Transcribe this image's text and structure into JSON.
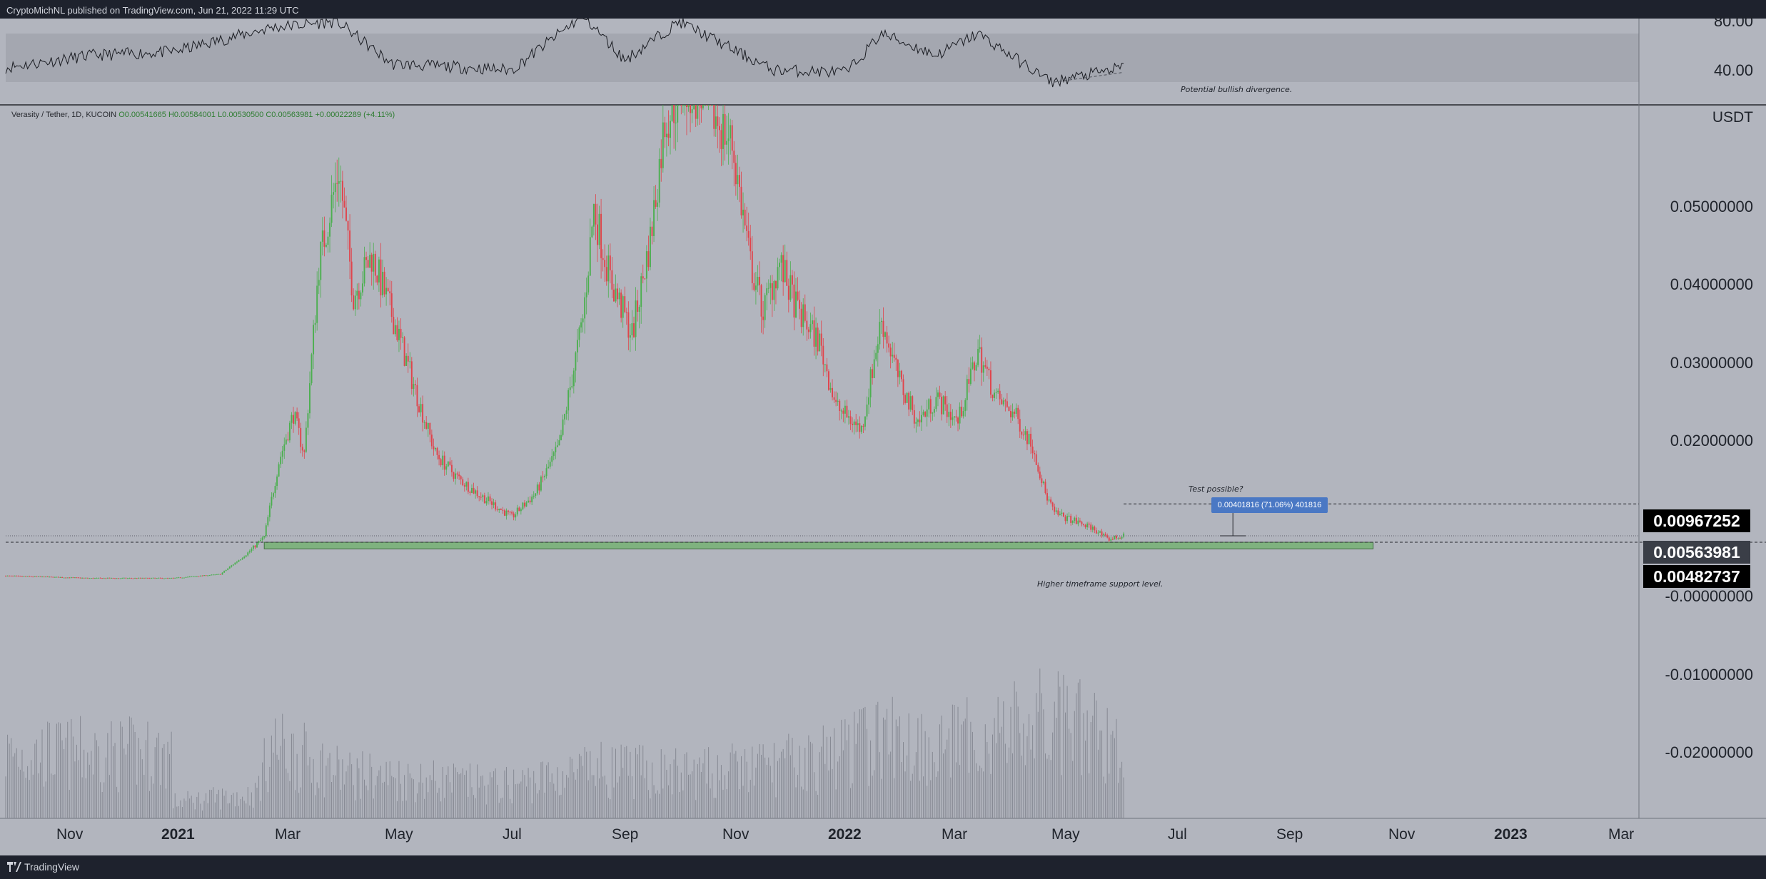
{
  "header": {
    "publisher": "CryptoMichNL published on TradingView.com, Jun 21, 2022 11:29 UTC"
  },
  "footer": {
    "brand": "TradingView"
  },
  "legend": {
    "symbol": "Verasity / Tether, 1D, KUCOIN",
    "open": "O0.00541665",
    "high": "H0.00584001",
    "low": "L0.00530500",
    "close": "C0.00563981",
    "change": "+0.00022289 (+4.11%)"
  },
  "annotations": {
    "rsi_note": "Potential bullish divergence.",
    "test_note": "Test possible?",
    "measure": "0.00401816 (71.06%) 401816",
    "support_note": "Higher timeframe support level."
  },
  "price_axis": {
    "currency": "USDT",
    "ticks": [
      "0.05000000",
      "0.04000000",
      "0.03000000",
      "0.02000000",
      "-0.00000000",
      "-0.01000000",
      "-0.02000000"
    ],
    "tags": [
      {
        "label": "0.00967252",
        "color": "#000000"
      },
      {
        "label": "0.00563981",
        "color": "#3a3e47"
      },
      {
        "label": "0.00482737",
        "color": "#000000"
      }
    ]
  },
  "rsi_axis": {
    "ticks": [
      "80.00",
      "40.00"
    ]
  },
  "time_axis": {
    "labels": [
      {
        "text": "Nov",
        "bold": false
      },
      {
        "text": "2021",
        "bold": true
      },
      {
        "text": "Mar",
        "bold": false
      },
      {
        "text": "May",
        "bold": false
      },
      {
        "text": "Jul",
        "bold": false
      },
      {
        "text": "Sep",
        "bold": false
      },
      {
        "text": "Nov",
        "bold": false
      },
      {
        "text": "2022",
        "bold": true
      },
      {
        "text": "Mar",
        "bold": false
      },
      {
        "text": "May",
        "bold": false
      },
      {
        "text": "Jul",
        "bold": false
      },
      {
        "text": "Sep",
        "bold": false
      },
      {
        "text": "Nov",
        "bold": false
      },
      {
        "text": "2023",
        "bold": true
      },
      {
        "text": "Mar",
        "bold": false
      }
    ]
  },
  "colors": {
    "background": "#b2b5be",
    "up": "#4caf50",
    "down": "#e0444c",
    "support_zone": "#7fb27f",
    "measure_box": "#4a78c4"
  },
  "chart_data": {
    "type": "candlestick",
    "symbol": "Verasity / Tether, 1D, KUCOIN",
    "y_unit": "USDT",
    "ylim": [
      -0.03,
      0.06
    ],
    "x_range": [
      "2020-10-15",
      "2023-03-31"
    ],
    "price_path": [
      [
        "2020-10-15",
        0.0006
      ],
      [
        "2020-12-01",
        0.0003
      ],
      [
        "2021-01-15",
        0.0003
      ],
      [
        "2021-02-10",
        0.0008
      ],
      [
        "2021-02-25",
        0.0035
      ],
      [
        "2021-03-06",
        0.0055
      ],
      [
        "2021-03-14",
        0.015
      ],
      [
        "2021-03-22",
        0.021
      ],
      [
        "2021-03-28",
        0.016
      ],
      [
        "2021-04-05",
        0.04
      ],
      [
        "2021-04-16",
        0.052
      ],
      [
        "2021-04-24",
        0.036
      ],
      [
        "2021-05-04",
        0.041
      ],
      [
        "2021-05-16",
        0.033
      ],
      [
        "2021-05-28",
        0.024
      ],
      [
        "2021-06-08",
        0.016
      ],
      [
        "2021-06-20",
        0.013
      ],
      [
        "2021-07-01",
        0.011
      ],
      [
        "2021-07-20",
        0.008
      ],
      [
        "2021-08-02",
        0.011
      ],
      [
        "2021-08-15",
        0.017
      ],
      [
        "2021-08-28",
        0.033
      ],
      [
        "2021-09-03",
        0.047
      ],
      [
        "2021-09-12",
        0.038
      ],
      [
        "2021-09-24",
        0.031
      ],
      [
        "2021-10-04",
        0.043
      ],
      [
        "2021-10-12",
        0.058
      ],
      [
        "2021-10-22",
        0.062
      ],
      [
        "2021-11-02",
        0.061
      ],
      [
        "2021-11-18",
        0.055
      ],
      [
        "2021-11-28",
        0.04
      ],
      [
        "2021-12-05",
        0.034
      ],
      [
        "2021-12-14",
        0.04
      ],
      [
        "2021-12-24",
        0.034
      ],
      [
        "2022-01-05",
        0.03
      ],
      [
        "2022-01-14",
        0.022
      ],
      [
        "2022-01-28",
        0.019
      ],
      [
        "2022-02-08",
        0.033
      ],
      [
        "2022-02-18",
        0.025
      ],
      [
        "2022-02-28",
        0.02
      ],
      [
        "2022-03-10",
        0.023
      ],
      [
        "2022-03-22",
        0.02
      ],
      [
        "2022-04-02",
        0.029
      ],
      [
        "2022-04-12",
        0.023
      ],
      [
        "2022-04-22",
        0.021
      ],
      [
        "2022-05-02",
        0.017
      ],
      [
        "2022-05-09",
        0.011
      ],
      [
        "2022-05-14",
        0.0085
      ],
      [
        "2022-05-25",
        0.0075
      ],
      [
        "2022-06-05",
        0.0065
      ],
      [
        "2022-06-12",
        0.0052
      ],
      [
        "2022-06-21",
        0.0056
      ]
    ],
    "last_close": 0.00563981,
    "support_level": 0.00482737,
    "support_zone": {
      "from": "2021-03-06",
      "to": "2022-11-05",
      "low": 0.004,
      "high": 0.00482737
    },
    "target_level": 0.00967252,
    "measured_move": {
      "change": 0.00401816,
      "change_pct": 71.06
    },
    "volume_profile": [
      [
        "2021-01-15",
        0.2
      ],
      [
        "2021-03-01",
        0.3
      ],
      [
        "2021-03-10",
        0.9
      ],
      [
        "2021-04-20",
        0.55
      ],
      [
        "2021-07-15",
        0.4
      ],
      [
        "2021-09-05",
        0.6
      ],
      [
        "2021-11-01",
        0.55
      ],
      [
        "2022-01-01",
        0.7
      ],
      [
        "2022-02-08",
        1.0
      ],
      [
        "2022-03-15",
        0.9
      ],
      [
        "2022-05-10",
        1.2
      ],
      [
        "2022-06-12",
        1.0
      ],
      [
        "2022-06-21",
        0.8
      ]
    ],
    "rsi": {
      "ticks": [
        80,
        40
      ],
      "path": [
        [
          "2020-10-15",
          42
        ],
        [
          "2020-12-01",
          52
        ],
        [
          "2021-01-15",
          55
        ],
        [
          "2021-03-10",
          75
        ],
        [
          "2021-04-15",
          80
        ],
        [
          "2021-05-15",
          45
        ],
        [
          "2021-07-20",
          40
        ],
        [
          "2021-08-28",
          85
        ],
        [
          "2021-09-20",
          48
        ],
        [
          "2021-10-20",
          80
        ],
        [
          "2021-12-10",
          40
        ],
        [
          "2022-01-20",
          38
        ],
        [
          "2022-02-08",
          70
        ],
        [
          "2022-03-10",
          52
        ],
        [
          "2022-04-02",
          70
        ],
        [
          "2022-05-12",
          30
        ],
        [
          "2022-06-01",
          36
        ],
        [
          "2022-06-21",
          42
        ]
      ],
      "divergence": [
        [
          "2022-05-14",
          30
        ],
        [
          "2022-06-21",
          38
        ]
      ]
    },
    "time_axis": [
      "Nov",
      "2021",
      "Mar",
      "May",
      "Jul",
      "Sep",
      "Nov",
      "2022",
      "Mar",
      "May",
      "Jul",
      "Sep",
      "Nov",
      "2023",
      "Mar"
    ]
  }
}
